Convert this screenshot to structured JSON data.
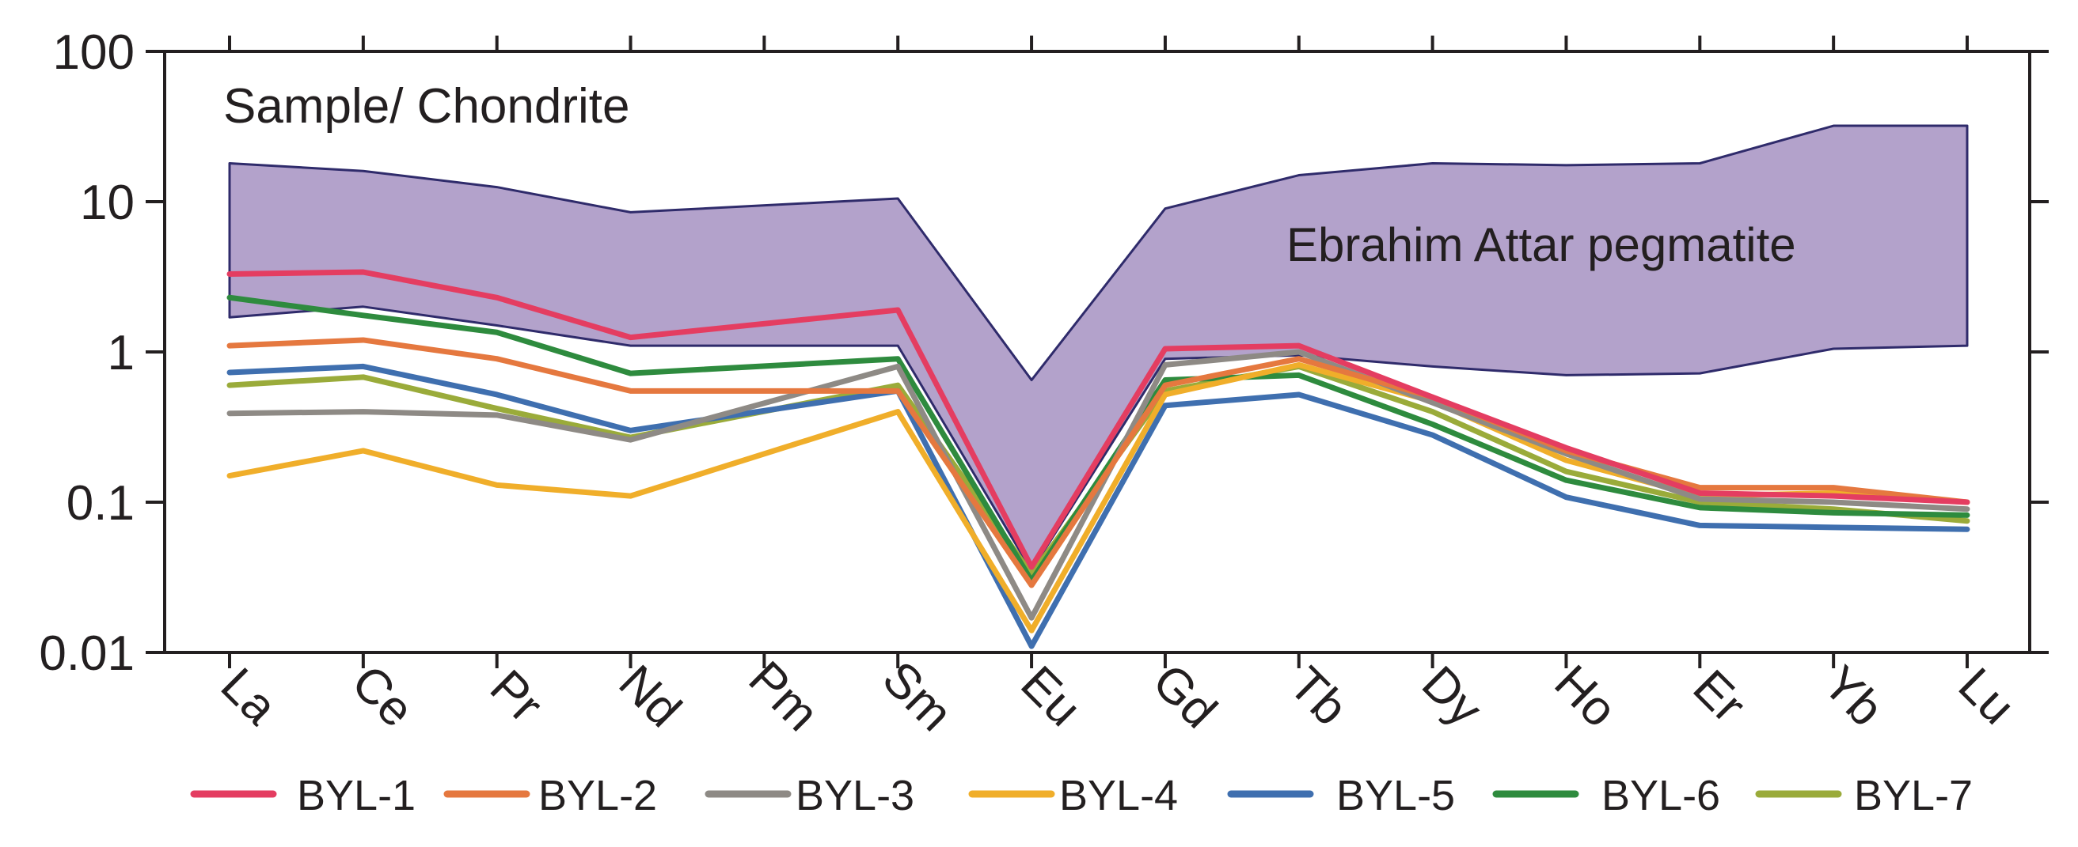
{
  "chart_data": {
    "type": "line",
    "title": "Sample/ Chondrite",
    "yscale": "log",
    "ylim": [
      0.01,
      100
    ],
    "y_ticks": [
      "100",
      "10",
      "1",
      "0.1",
      "0.01"
    ],
    "categories": [
      "La",
      "Ce",
      "Pr",
      "Nd",
      "Pm",
      "Sm",
      "Eu",
      "Gd",
      "Tb",
      "Dy",
      "Ho",
      "Er",
      "Yb",
      "Lu"
    ],
    "band": {
      "name": "Ebrahim Attar pegmatite",
      "color": "#b3a2cb",
      "upper": [
        18,
        16,
        12.5,
        8.5,
        null,
        10.5,
        0.65,
        9,
        15,
        18,
        17.5,
        18,
        32,
        32
      ],
      "lower": [
        1.7,
        2.0,
        1.5,
        1.1,
        null,
        1.1,
        0.035,
        0.9,
        0.95,
        0.8,
        0.7,
        0.72,
        1.05,
        1.1
      ]
    },
    "series": [
      {
        "name": "BYL-7",
        "color": "#9aab3a",
        "values": [
          0.6,
          0.68,
          0.42,
          0.27,
          null,
          0.6,
          0.033,
          0.55,
          0.8,
          0.4,
          0.16,
          0.1,
          0.09,
          0.075
        ]
      },
      {
        "name": "BYL-6",
        "color": "#2e8b3e",
        "values": [
          2.3,
          1.75,
          1.35,
          0.72,
          null,
          0.9,
          0.03,
          0.65,
          0.7,
          0.33,
          0.14,
          0.092,
          0.085,
          0.082
        ]
      },
      {
        "name": "BYL-5",
        "color": "#3f6faf",
        "values": [
          0.73,
          0.8,
          0.52,
          0.3,
          null,
          0.55,
          0.011,
          0.44,
          0.52,
          0.28,
          0.108,
          0.07,
          0.068,
          0.066
        ]
      },
      {
        "name": "BYL-4",
        "color": "#f0ae2a",
        "values": [
          0.15,
          0.22,
          0.13,
          0.11,
          null,
          0.4,
          0.014,
          0.52,
          0.82,
          0.47,
          0.19,
          0.11,
          0.115,
          0.1
        ]
      },
      {
        "name": "BYL-3",
        "color": "#8e8a85",
        "values": [
          0.39,
          0.4,
          0.38,
          0.26,
          null,
          0.8,
          0.017,
          0.82,
          1.0,
          0.46,
          0.21,
          0.105,
          0.1,
          0.09
        ]
      },
      {
        "name": "BYL-2",
        "color": "#e5783f",
        "values": [
          1.1,
          1.2,
          0.9,
          0.55,
          null,
          0.55,
          0.028,
          0.6,
          0.9,
          0.5,
          0.22,
          0.125,
          0.125,
          0.1
        ]
      },
      {
        "name": "BYL-1",
        "color": "#e43d61",
        "values": [
          3.3,
          3.4,
          2.3,
          1.25,
          null,
          1.9,
          0.037,
          1.05,
          1.1,
          0.5,
          0.23,
          0.115,
          0.11,
          0.1
        ]
      }
    ],
    "legend": [
      "BYL-1",
      "BYL-2",
      "BYL-3",
      "BYL-4",
      "BYL-5",
      "BYL-6",
      "BYL-7"
    ],
    "legend_position": "bottom"
  }
}
